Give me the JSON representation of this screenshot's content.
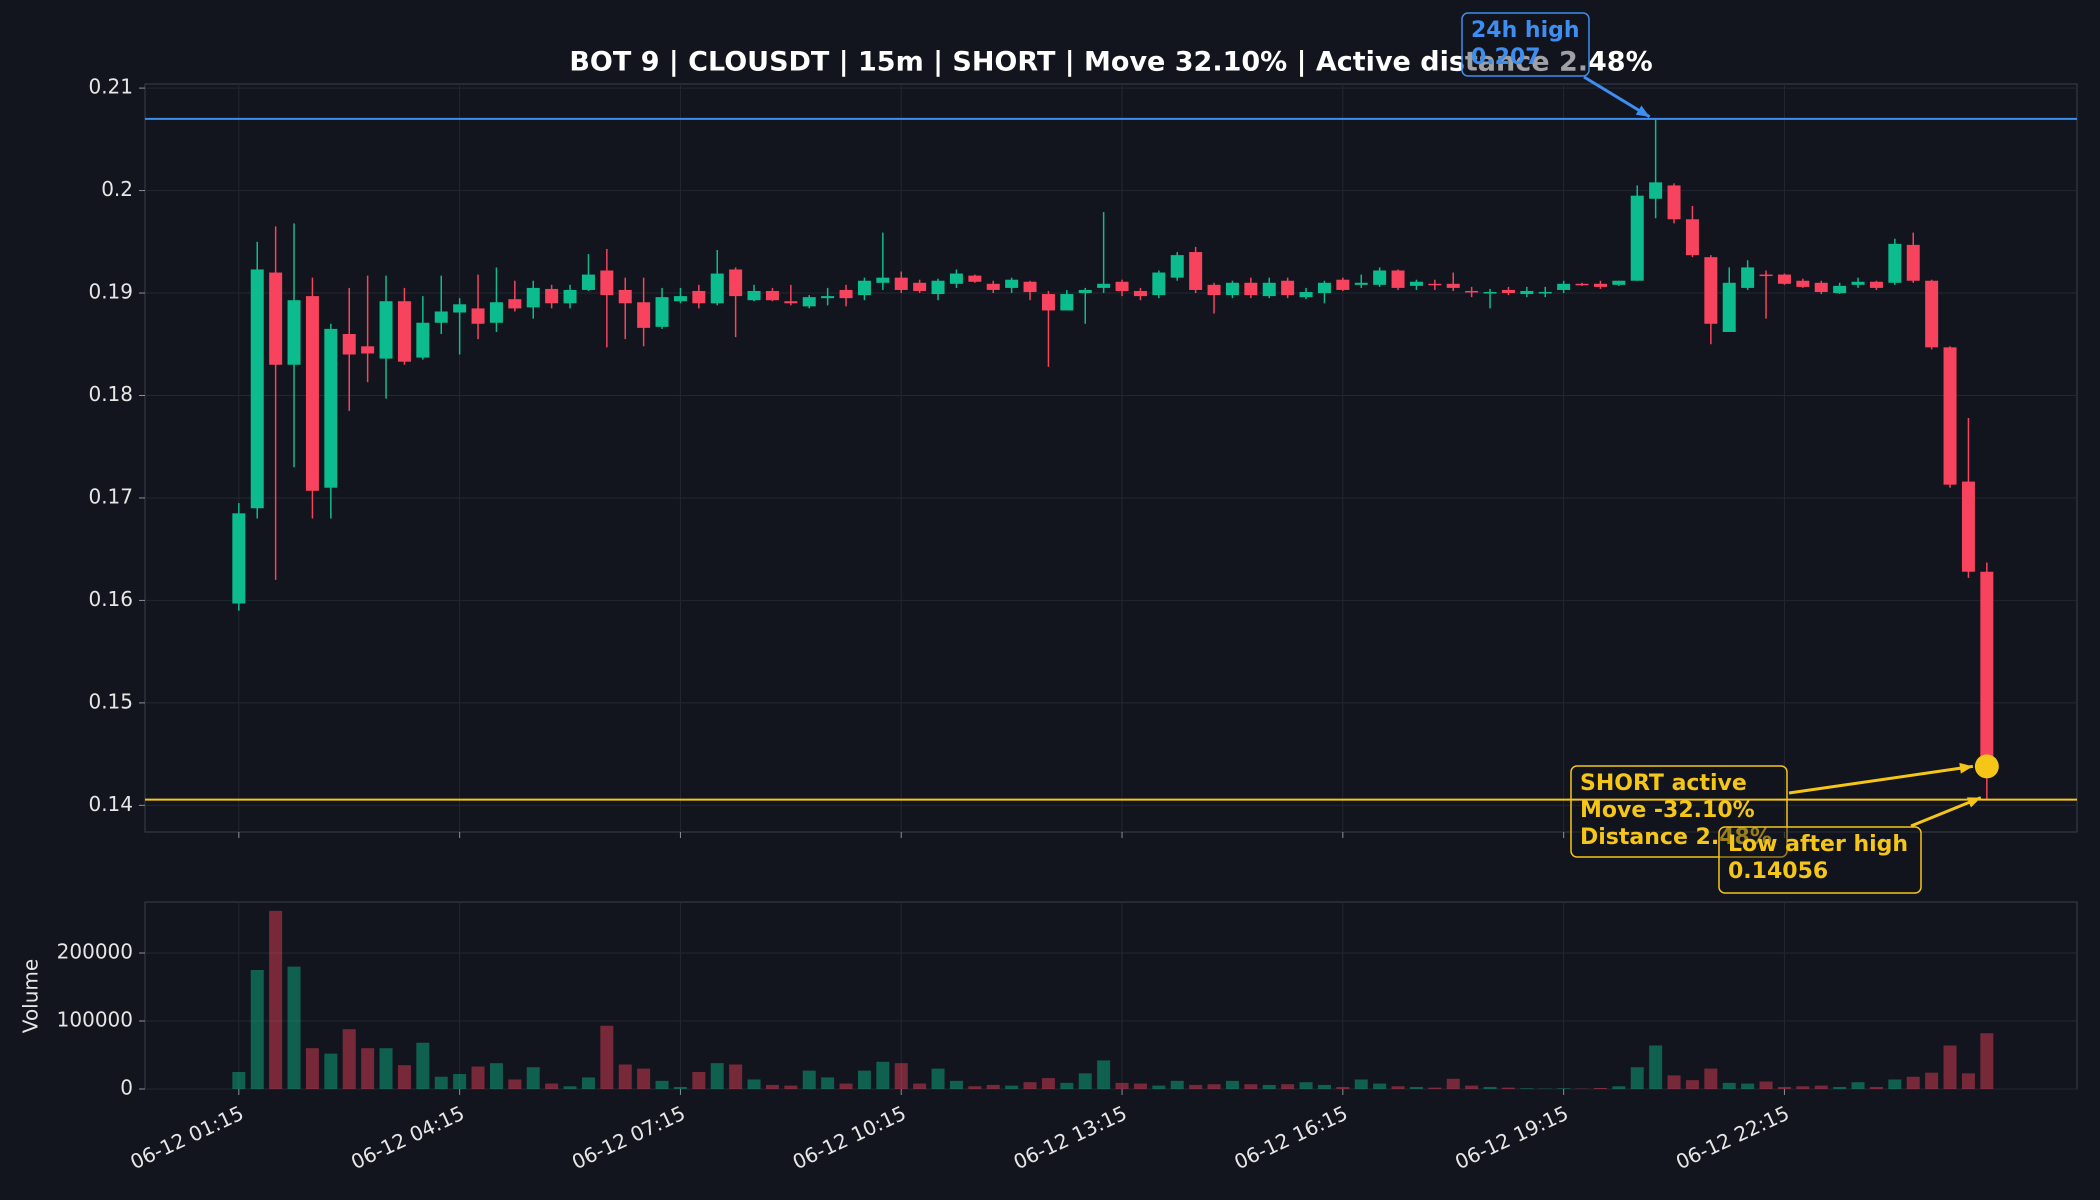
{
  "chart_data": [
    {
      "type": "candlestick",
      "title": "BOT 9 | CLOUSDT | 15m | SHORT | Move 32.10% | Active distance 2.48%",
      "x": [
        "06-12 01:15",
        "06-12 01:30",
        "06-12 01:45",
        "06-12 02:00",
        "06-12 02:15",
        "06-12 02:30",
        "06-12 02:45",
        "06-12 03:00",
        "06-12 03:15",
        "06-12 03:30",
        "06-12 03:45",
        "06-12 04:00",
        "06-12 04:15",
        "06-12 04:30",
        "06-12 04:45",
        "06-12 05:00",
        "06-12 05:15",
        "06-12 05:30",
        "06-12 05:45",
        "06-12 06:00",
        "06-12 06:15",
        "06-12 06:30",
        "06-12 06:45",
        "06-12 07:00",
        "06-12 07:15",
        "06-12 07:30",
        "06-12 07:45",
        "06-12 08:00",
        "06-12 08:15",
        "06-12 08:30",
        "06-12 08:45",
        "06-12 09:00",
        "06-12 09:15",
        "06-12 09:30",
        "06-12 09:45",
        "06-12 10:00",
        "06-12 10:15",
        "06-12 10:30",
        "06-12 10:45",
        "06-12 11:00",
        "06-12 11:15",
        "06-12 11:30",
        "06-12 11:45",
        "06-12 12:00",
        "06-12 12:15",
        "06-12 12:30",
        "06-12 12:45",
        "06-12 13:00",
        "06-12 13:15",
        "06-12 13:30",
        "06-12 13:45",
        "06-12 14:00",
        "06-12 14:15",
        "06-12 14:30",
        "06-12 14:45",
        "06-12 15:00",
        "06-12 15:15",
        "06-12 15:30",
        "06-12 15:45",
        "06-12 16:00",
        "06-12 16:15",
        "06-12 16:30",
        "06-12 16:45",
        "06-12 17:00",
        "06-12 17:15",
        "06-12 17:30",
        "06-12 17:45",
        "06-12 18:00",
        "06-12 18:15",
        "06-12 18:30",
        "06-12 18:45",
        "06-12 19:00",
        "06-12 19:15",
        "06-12 19:30",
        "06-12 19:45",
        "06-12 20:00",
        "06-12 20:15",
        "06-12 20:30",
        "06-12 20:45",
        "06-12 21:00",
        "06-12 21:15",
        "06-12 21:30",
        "06-12 21:45",
        "06-12 22:00",
        "06-12 22:15",
        "06-12 22:30",
        "06-12 22:45",
        "06-12 23:00",
        "06-12 23:15",
        "06-12 23:30",
        "06-12 23:45",
        "06-13 00:00",
        "06-13 00:15",
        "06-13 00:30",
        "06-13 00:45",
        "06-13 01:00"
      ],
      "open": [
        0.1597,
        0.169,
        0.192,
        0.183,
        0.1897,
        0.171,
        0.186,
        0.1848,
        0.1836,
        0.1892,
        0.1837,
        0.1871,
        0.1881,
        0.1885,
        0.1871,
        0.1894,
        0.1886,
        0.1904,
        0.189,
        0.1903,
        0.1922,
        0.1903,
        0.1891,
        0.1867,
        0.1892,
        0.1902,
        0.189,
        0.1923,
        0.1893,
        0.1902,
        0.1892,
        0.1887,
        0.1895,
        0.1903,
        0.1898,
        0.191,
        0.1915,
        0.191,
        0.1899,
        0.1909,
        0.1917,
        0.1909,
        0.1905,
        0.1911,
        0.1899,
        0.1883,
        0.19,
        0.1905,
        0.1911,
        0.1902,
        0.1898,
        0.1915,
        0.194,
        0.1908,
        0.1898,
        0.191,
        0.1897,
        0.1912,
        0.1896,
        0.19,
        0.1913,
        0.1908,
        0.1908,
        0.1922,
        0.1907,
        0.1909,
        0.1909,
        0.1902,
        0.19,
        0.1903,
        0.1899,
        0.19,
        0.1903,
        0.1909,
        0.1909,
        0.1908,
        0.1912,
        0.1992,
        0.2005,
        0.1972,
        0.1935,
        0.1862,
        0.1905,
        0.1918,
        0.1918,
        0.1912,
        0.191,
        0.19,
        0.1908,
        0.1911,
        0.191,
        0.1947,
        0.1912,
        0.1847,
        0.1716,
        0.1628
      ],
      "high": [
        0.1695,
        0.195,
        0.1965,
        0.1968,
        0.1915,
        0.187,
        0.1905,
        0.1917,
        0.1917,
        0.1905,
        0.1897,
        0.1917,
        0.1895,
        0.1918,
        0.1925,
        0.1912,
        0.1912,
        0.1908,
        0.1908,
        0.1938,
        0.1943,
        0.1915,
        0.1915,
        0.1905,
        0.1905,
        0.1908,
        0.1942,
        0.1925,
        0.1908,
        0.1905,
        0.1908,
        0.1898,
        0.1905,
        0.1908,
        0.1915,
        0.1959,
        0.1921,
        0.1913,
        0.1914,
        0.1923,
        0.1918,
        0.1912,
        0.1915,
        0.1912,
        0.1902,
        0.1903,
        0.1905,
        0.1979,
        0.1913,
        0.1905,
        0.1922,
        0.194,
        0.1945,
        0.191,
        0.1912,
        0.1915,
        0.1915,
        0.1915,
        0.1905,
        0.1912,
        0.1915,
        0.1918,
        0.1925,
        0.1923,
        0.1913,
        0.1913,
        0.192,
        0.1906,
        0.1904,
        0.1906,
        0.1906,
        0.1906,
        0.1912,
        0.191,
        0.1912,
        0.1912,
        0.2005,
        0.207,
        0.2007,
        0.1985,
        0.1937,
        0.1925,
        0.1932,
        0.1922,
        0.1919,
        0.1914,
        0.1912,
        0.191,
        0.1915,
        0.1912,
        0.1953,
        0.1959,
        0.1913,
        0.1848,
        0.1778,
        0.1637
      ],
      "low": [
        0.159,
        0.168,
        0.162,
        0.173,
        0.168,
        0.168,
        0.1785,
        0.1813,
        0.1797,
        0.183,
        0.1835,
        0.186,
        0.184,
        0.1855,
        0.1862,
        0.1882,
        0.1875,
        0.1885,
        0.1885,
        0.1902,
        0.1847,
        0.1855,
        0.1848,
        0.1865,
        0.189,
        0.1885,
        0.1888,
        0.1857,
        0.1892,
        0.1892,
        0.1888,
        0.1885,
        0.1888,
        0.1887,
        0.1893,
        0.1903,
        0.19,
        0.19,
        0.1893,
        0.1905,
        0.191,
        0.19,
        0.19,
        0.1893,
        0.1828,
        0.1883,
        0.187,
        0.19,
        0.1897,
        0.1893,
        0.1895,
        0.1912,
        0.19,
        0.188,
        0.1895,
        0.1895,
        0.1895,
        0.1895,
        0.1894,
        0.189,
        0.1902,
        0.1905,
        0.1906,
        0.1903,
        0.1903,
        0.1903,
        0.1902,
        0.1896,
        0.1885,
        0.1898,
        0.1896,
        0.1896,
        0.19,
        0.1907,
        0.1904,
        0.1907,
        0.1912,
        0.1973,
        0.1968,
        0.1935,
        0.185,
        0.1862,
        0.1903,
        0.1875,
        0.1908,
        0.1905,
        0.1899,
        0.1899,
        0.1905,
        0.1903,
        0.1908,
        0.191,
        0.1845,
        0.171,
        0.1622,
        0.14056
      ],
      "close": [
        0.1685,
        0.1923,
        0.183,
        0.1893,
        0.1707,
        0.1865,
        0.184,
        0.1841,
        0.1892,
        0.1833,
        0.1871,
        0.1882,
        0.1889,
        0.187,
        0.1891,
        0.1885,
        0.1905,
        0.189,
        0.1903,
        0.1918,
        0.1898,
        0.189,
        0.1866,
        0.1896,
        0.1897,
        0.189,
        0.1919,
        0.1897,
        0.1902,
        0.1893,
        0.189,
        0.1896,
        0.1897,
        0.1895,
        0.1912,
        0.1915,
        0.1903,
        0.1902,
        0.1912,
        0.1919,
        0.1911,
        0.1903,
        0.1913,
        0.1901,
        0.1883,
        0.1899,
        0.1903,
        0.1909,
        0.1902,
        0.1897,
        0.192,
        0.1937,
        0.1903,
        0.1898,
        0.191,
        0.1898,
        0.191,
        0.1898,
        0.1901,
        0.191,
        0.1903,
        0.191,
        0.1922,
        0.1905,
        0.1911,
        0.1908,
        0.1905,
        0.1901,
        0.1901,
        0.19,
        0.1902,
        0.1901,
        0.1909,
        0.1908,
        0.1906,
        0.1912,
        0.1995,
        0.2008,
        0.1972,
        0.1937,
        0.187,
        0.191,
        0.1925,
        0.1917,
        0.1909,
        0.1906,
        0.1901,
        0.1907,
        0.1911,
        0.1905,
        0.1948,
        0.1912,
        0.1847,
        0.1713,
        0.1628,
        0.1438
      ],
      "ylim": [
        0.1374,
        0.2104
      ],
      "yticks": [
        0.14,
        0.15,
        0.16,
        0.17,
        0.18,
        0.19,
        0.2,
        0.21
      ],
      "xticks": [
        "06-12 01:15",
        "06-12 04:15",
        "06-12 07:15",
        "06-12 10:15",
        "06-12 13:15",
        "06-12 16:15",
        "06-12 19:15",
        "06-12 22:15"
      ],
      "up_color": "#0dbc8e",
      "down_color": "#f7435e",
      "grid": true,
      "annotations": [
        {
          "label": "24h high",
          "value": 0.207,
          "x": "06-12 20:30",
          "color": "#3d8ef0",
          "hline": true
        },
        {
          "lines": [
            "SHORT active",
            "Move -32.10%",
            "Distance 2.48%"
          ],
          "value": 0.1438,
          "x": "06-13 01:00",
          "color": "#f5c518",
          "marker": true
        },
        {
          "label": "Low after high",
          "value": 0.14056,
          "x": "06-13 01:00",
          "color": "#f5c518",
          "hline": true
        }
      ]
    },
    {
      "type": "bar",
      "ylabel": "Volume",
      "values": [
        25000,
        175000,
        262000,
        180000,
        60000,
        52000,
        88000,
        60000,
        60000,
        35000,
        68000,
        18000,
        22000,
        33000,
        38000,
        14000,
        32000,
        8000,
        4000,
        17000,
        93000,
        36000,
        30000,
        12000,
        3000,
        25000,
        38000,
        36000,
        14000,
        6000,
        5000,
        27000,
        17000,
        8000,
        27000,
        40000,
        38000,
        8000,
        30000,
        12000,
        4000,
        6000,
        5000,
        10000,
        16000,
        9000,
        23000,
        42000,
        9000,
        8000,
        5000,
        12000,
        6000,
        7000,
        12000,
        7000,
        6000,
        7000,
        10000,
        6000,
        3000,
        14000,
        8000,
        4000,
        3000,
        2000,
        15000,
        5000,
        3000,
        2000,
        1000,
        500,
        1000,
        500,
        1500,
        4000,
        32000,
        64000,
        20000,
        13000,
        30000,
        9000,
        8000,
        11000,
        3000,
        4000,
        5000,
        3000,
        10000,
        3000,
        14000,
        18000,
        24000,
        64000,
        23000,
        82000
      ],
      "ylim": [
        0,
        275000
      ],
      "yticks": [
        0,
        100000,
        200000
      ],
      "grid": true
    }
  ]
}
